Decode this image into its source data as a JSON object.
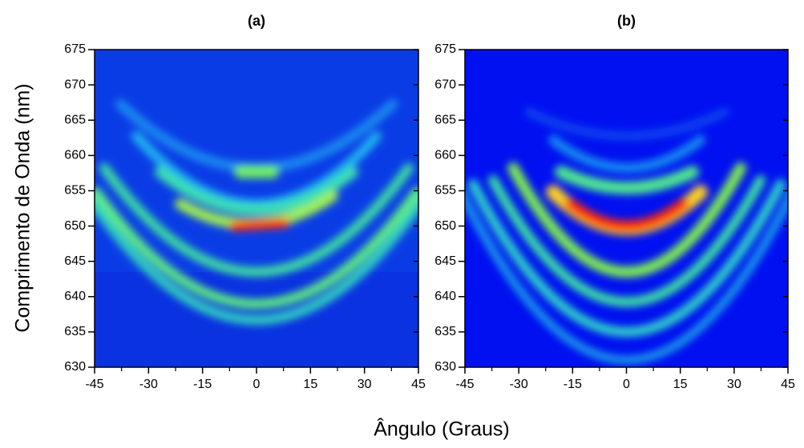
{
  "chart_data": [
    {
      "type": "heatmap",
      "title": "(a)",
      "xlim": [
        -45,
        45
      ],
      "ylim": [
        630,
        675
      ],
      "xticks": [
        -45,
        -30,
        -15,
        0,
        15,
        30,
        45
      ],
      "yticks": [
        630,
        635,
        640,
        645,
        650,
        655,
        660,
        665,
        670,
        675
      ]
    },
    {
      "type": "heatmap",
      "title": "(b)",
      "xlim": [
        -45,
        45
      ],
      "ylim": [
        630,
        675
      ],
      "xticks": [
        -45,
        -30,
        -15,
        0,
        15,
        30,
        45
      ],
      "yticks": [
        630,
        635,
        640,
        645,
        650,
        655,
        660,
        665,
        670,
        675
      ]
    }
  ],
  "x_label": "Ângulo (Graus)",
  "y_label": "Comprimento de Onda (nm)"
}
